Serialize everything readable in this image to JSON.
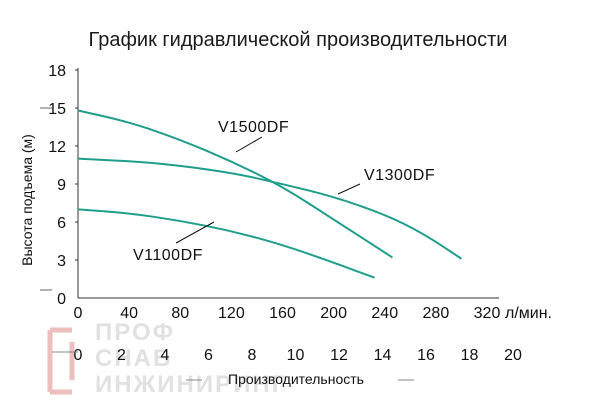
{
  "chart_data": {
    "type": "line",
    "title": "График гидравлической производительности",
    "ylabel": "Высота подъема (м)",
    "xlabel": "Производительность",
    "x_unit": "л/мин.",
    "ylim": [
      0,
      18
    ],
    "yticks": [
      0,
      3,
      6,
      9,
      12,
      15,
      18
    ],
    "xlim": [
      0,
      320
    ],
    "xticks": [
      0,
      40,
      80,
      120,
      160,
      200,
      240,
      280,
      320
    ],
    "x2ticks": [
      0,
      2,
      4,
      6,
      8,
      10,
      12,
      14,
      16,
      18,
      20
    ],
    "grid": false,
    "series": [
      {
        "name": "V1500DF",
        "x": [
          0,
          40,
          80,
          120,
          160,
          200,
          246
        ],
        "y": [
          14.8,
          13.9,
          12.5,
          10.8,
          8.8,
          6.2,
          3.2
        ]
      },
      {
        "name": "V1300DF",
        "x": [
          0,
          60,
          120,
          160,
          200,
          240,
          270,
          300
        ],
        "y": [
          11.0,
          10.7,
          9.9,
          9.0,
          8.0,
          6.6,
          5.1,
          3.1
        ]
      },
      {
        "name": "V1100DF",
        "x": [
          0,
          40,
          80,
          120,
          160,
          200,
          232
        ],
        "y": [
          7.0,
          6.7,
          6.1,
          5.3,
          4.2,
          2.8,
          1.6
        ]
      }
    ],
    "line_color": "#1f9e8c"
  },
  "watermark": {
    "line1": "ПРОФ",
    "line2": "СНАБ",
    "line3": "ИНЖИНИРИНГ"
  }
}
